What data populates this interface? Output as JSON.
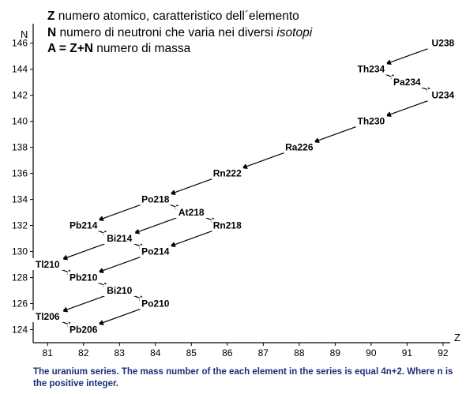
{
  "legend": [
    {
      "symbol": "Z",
      "text": " numero atomico, caratteristico dell´elemento",
      "italic": ""
    },
    {
      "symbol": "N",
      "text": " numero di neutroni che varia nei diversi ",
      "italic": "isotopi"
    },
    {
      "symbol": "A = Z+N",
      "text": " numero di massa",
      "italic": ""
    }
  ],
  "caption": "The uranium series. The mass number of the each element in the series is equal 4n+2. Where n is the positive integer.",
  "chart_data": {
    "type": "scatter",
    "xlabel": "Z",
    "ylabel": "N",
    "xlim": [
      80.6,
      92.2
    ],
    "ylim": [
      123,
      147.5
    ],
    "xticks": [
      81,
      82,
      83,
      84,
      85,
      86,
      87,
      88,
      89,
      90,
      91,
      92
    ],
    "yticks": [
      124,
      126,
      128,
      130,
      132,
      134,
      136,
      138,
      140,
      142,
      144,
      146
    ],
    "points": [
      {
        "label": "U238",
        "z": 92,
        "n": 146
      },
      {
        "label": "Th234",
        "z": 90,
        "n": 144
      },
      {
        "label": "Pa234",
        "z": 91,
        "n": 143
      },
      {
        "label": "U234",
        "z": 92,
        "n": 142
      },
      {
        "label": "Th230",
        "z": 90,
        "n": 140
      },
      {
        "label": "Ra226",
        "z": 88,
        "n": 138
      },
      {
        "label": "Rn222",
        "z": 86,
        "n": 136
      },
      {
        "label": "Po218",
        "z": 84,
        "n": 134
      },
      {
        "label": "At218",
        "z": 85,
        "n": 133
      },
      {
        "label": "Pb214",
        "z": 82,
        "n": 132
      },
      {
        "label": "Rn218",
        "z": 86,
        "n": 132
      },
      {
        "label": "Bi214",
        "z": 83,
        "n": 131
      },
      {
        "label": "Po214",
        "z": 84,
        "n": 130
      },
      {
        "label": "Tl210",
        "z": 81,
        "n": 129
      },
      {
        "label": "Pb210",
        "z": 82,
        "n": 128
      },
      {
        "label": "Bi210",
        "z": 83,
        "n": 127
      },
      {
        "label": "Po210",
        "z": 84,
        "n": 126
      },
      {
        "label": "Tl206",
        "z": 81,
        "n": 125
      },
      {
        "label": "Pb206",
        "z": 82,
        "n": 124
      }
    ],
    "decays": [
      [
        "U238",
        "Th234"
      ],
      [
        "Th234",
        "Pa234"
      ],
      [
        "Pa234",
        "U234"
      ],
      [
        "U234",
        "Th230"
      ],
      [
        "Th230",
        "Ra226"
      ],
      [
        "Ra226",
        "Rn222"
      ],
      [
        "Rn222",
        "Po218"
      ],
      [
        "Po218",
        "Pb214"
      ],
      [
        "Po218",
        "At218"
      ],
      [
        "At218",
        "Bi214"
      ],
      [
        "At218",
        "Rn218"
      ],
      [
        "Rn218",
        "Po214"
      ],
      [
        "Pb214",
        "Bi214"
      ],
      [
        "Bi214",
        "Tl210"
      ],
      [
        "Bi214",
        "Po214"
      ],
      [
        "Po214",
        "Pb210"
      ],
      [
        "Tl210",
        "Pb210"
      ],
      [
        "Pb210",
        "Bi210"
      ],
      [
        "Bi210",
        "Tl206"
      ],
      [
        "Bi210",
        "Po210"
      ],
      [
        "Po210",
        "Pb206"
      ],
      [
        "Tl206",
        "Pb206"
      ]
    ]
  }
}
